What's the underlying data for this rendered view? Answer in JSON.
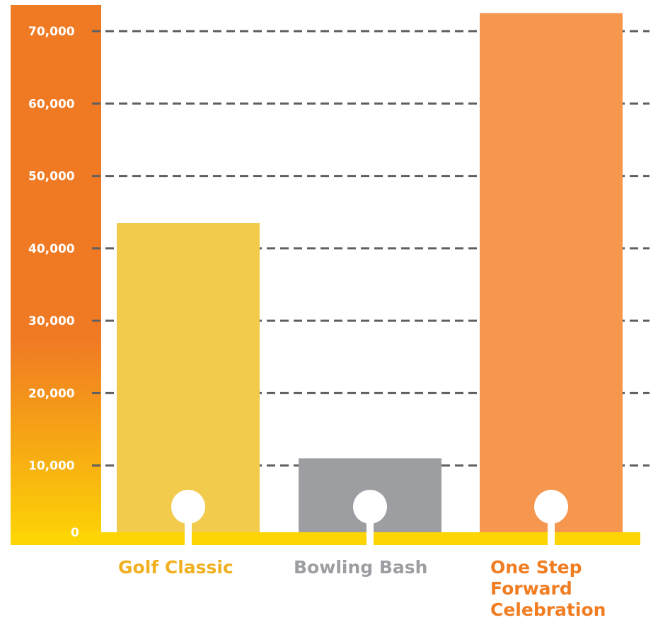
{
  "chart_data": {
    "type": "bar",
    "title": "",
    "xlabel": "",
    "ylabel": "",
    "ylim": [
      0,
      70000
    ],
    "y_ticks": [
      "0",
      "10,000",
      "20,000",
      "30,000",
      "40,000",
      "50,000",
      "60,000",
      "70,000"
    ],
    "y_tick_values": [
      0,
      10000,
      20000,
      30000,
      40000,
      50000,
      60000,
      70000
    ],
    "grid": "dashed horizontal",
    "categories": [
      {
        "label": "Golf Classic",
        "lines": [
          "Golf Classic"
        ],
        "value": 43500,
        "color": "#f2cb4c",
        "label_color": "#f0b020"
      },
      {
        "label": "Bowling Bash",
        "lines": [
          "Bowling Bash"
        ],
        "value": 11000,
        "color": "#9d9ea2",
        "label_color": "#9d9ea2"
      },
      {
        "label": "One Step Forward Celebration",
        "lines": [
          "One Step",
          "Forward",
          "Celebration"
        ],
        "value": 72500,
        "color": "#f69750",
        "label_color": "#f07d22"
      }
    ],
    "axis_bar_colors": {
      "top": "#f07a24",
      "bottom": "#fdd505"
    },
    "baseline_color": "#fdd505"
  }
}
